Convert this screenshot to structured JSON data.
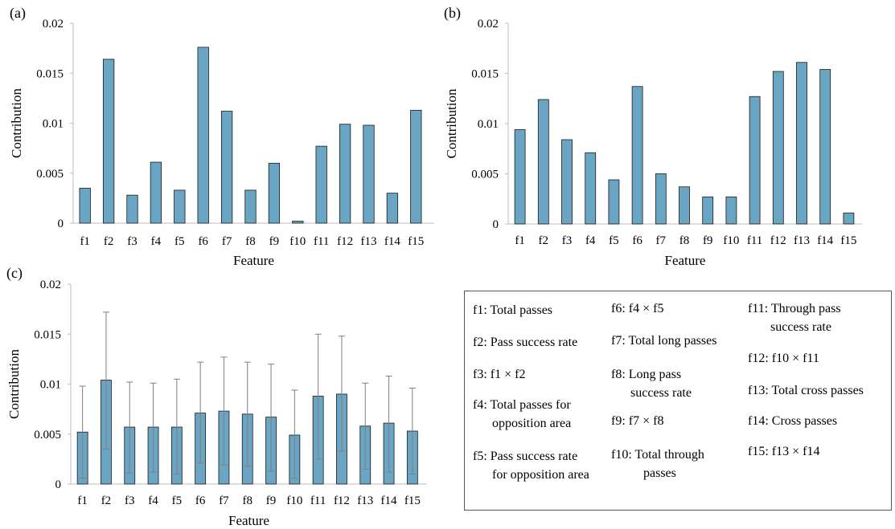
{
  "colors": {
    "bar": "#6aa5c3",
    "bar_edge": "#1a1a1a",
    "axis": "#bdbdbd",
    "error": "#7f7f7f"
  },
  "chart_data": [
    {
      "panel_label": "(a)",
      "type": "bar",
      "categories": [
        "f1",
        "f2",
        "f3",
        "f4",
        "f5",
        "f6",
        "f7",
        "f8",
        "f9",
        "f10",
        "f11",
        "f12",
        "f13",
        "f14",
        "f15"
      ],
      "values": [
        0.0035,
        0.0164,
        0.0028,
        0.0061,
        0.0033,
        0.0176,
        0.0112,
        0.0033,
        0.006,
        0.0002,
        0.0077,
        0.0099,
        0.0098,
        0.003,
        0.0113
      ],
      "xlabel": "Feature",
      "ylabel": "Contribution",
      "ylim": [
        0,
        0.02
      ],
      "yticks": [
        "0",
        "0.005",
        "0.01",
        "0.015",
        "0.02"
      ],
      "grid": false
    },
    {
      "panel_label": "(b)",
      "type": "bar",
      "categories": [
        "f1",
        "f2",
        "f3",
        "f4",
        "f5",
        "f6",
        "f7",
        "f8",
        "f9",
        "f10",
        "f11",
        "f12",
        "f13",
        "f14",
        "f15"
      ],
      "values": [
        0.0094,
        0.0124,
        0.0084,
        0.0071,
        0.0044,
        0.0137,
        0.005,
        0.0037,
        0.0027,
        0.0027,
        0.0127,
        0.0152,
        0.0161,
        0.0154,
        0.0011
      ],
      "xlabel": "Feature",
      "ylabel": "Contribution",
      "ylim": [
        0,
        0.02
      ],
      "yticks": [
        "0",
        "0.005",
        "0.01",
        "0.015",
        "0.02"
      ],
      "grid": false
    },
    {
      "panel_label": "(c)",
      "type": "bar",
      "categories": [
        "f1",
        "f2",
        "f3",
        "f4",
        "f5",
        "f6",
        "f7",
        "f8",
        "f9",
        "f10",
        "f11",
        "f12",
        "f13",
        "f14",
        "f15"
      ],
      "values": [
        0.0052,
        0.0104,
        0.0057,
        0.0057,
        0.0057,
        0.0071,
        0.0073,
        0.007,
        0.0067,
        0.0049,
        0.0088,
        0.009,
        0.0058,
        0.0061,
        0.0053
      ],
      "error_low": [
        0.0006,
        0.0035,
        0.0011,
        0.0012,
        0.001,
        0.0021,
        0.0019,
        0.0018,
        0.0013,
        0.0006,
        0.0025,
        0.0033,
        0.0015,
        0.0012,
        0.001
      ],
      "error_high": [
        0.0098,
        0.0172,
        0.0102,
        0.0101,
        0.0105,
        0.0122,
        0.0127,
        0.0122,
        0.012,
        0.0094,
        0.015,
        0.0148,
        0.0101,
        0.0108,
        0.0096
      ],
      "xlabel": "Feature",
      "ylabel": "Contribution",
      "ylim": [
        0,
        0.02
      ],
      "yticks": [
        "0",
        "0.005",
        "0.01",
        "0.015",
        "0.02"
      ],
      "grid": false
    }
  ],
  "legend": {
    "col1": [
      [
        "f1: Total passes"
      ],
      [
        "f2: Pass success rate"
      ],
      [
        "f3: f1 × f2"
      ],
      [
        "f4: Total passes for",
        "opposition area"
      ],
      [
        "f5: Pass success rate",
        "for opposition area"
      ]
    ],
    "col2": [
      [
        "f6: f4 × f5"
      ],
      [
        "f7: Total long passes"
      ],
      [
        "f8: Long pass",
        "success rate"
      ],
      [
        "f9: f7 × f8"
      ],
      [
        "f10: Total through",
        "passes"
      ]
    ],
    "col3": [
      [
        "f11: Through pass",
        "success rate"
      ],
      [
        "f12: f10 × f11"
      ],
      [
        "f13: Total cross passes"
      ],
      [
        "f14: Cross passes"
      ],
      [
        "f15: f13 × f14"
      ]
    ]
  }
}
